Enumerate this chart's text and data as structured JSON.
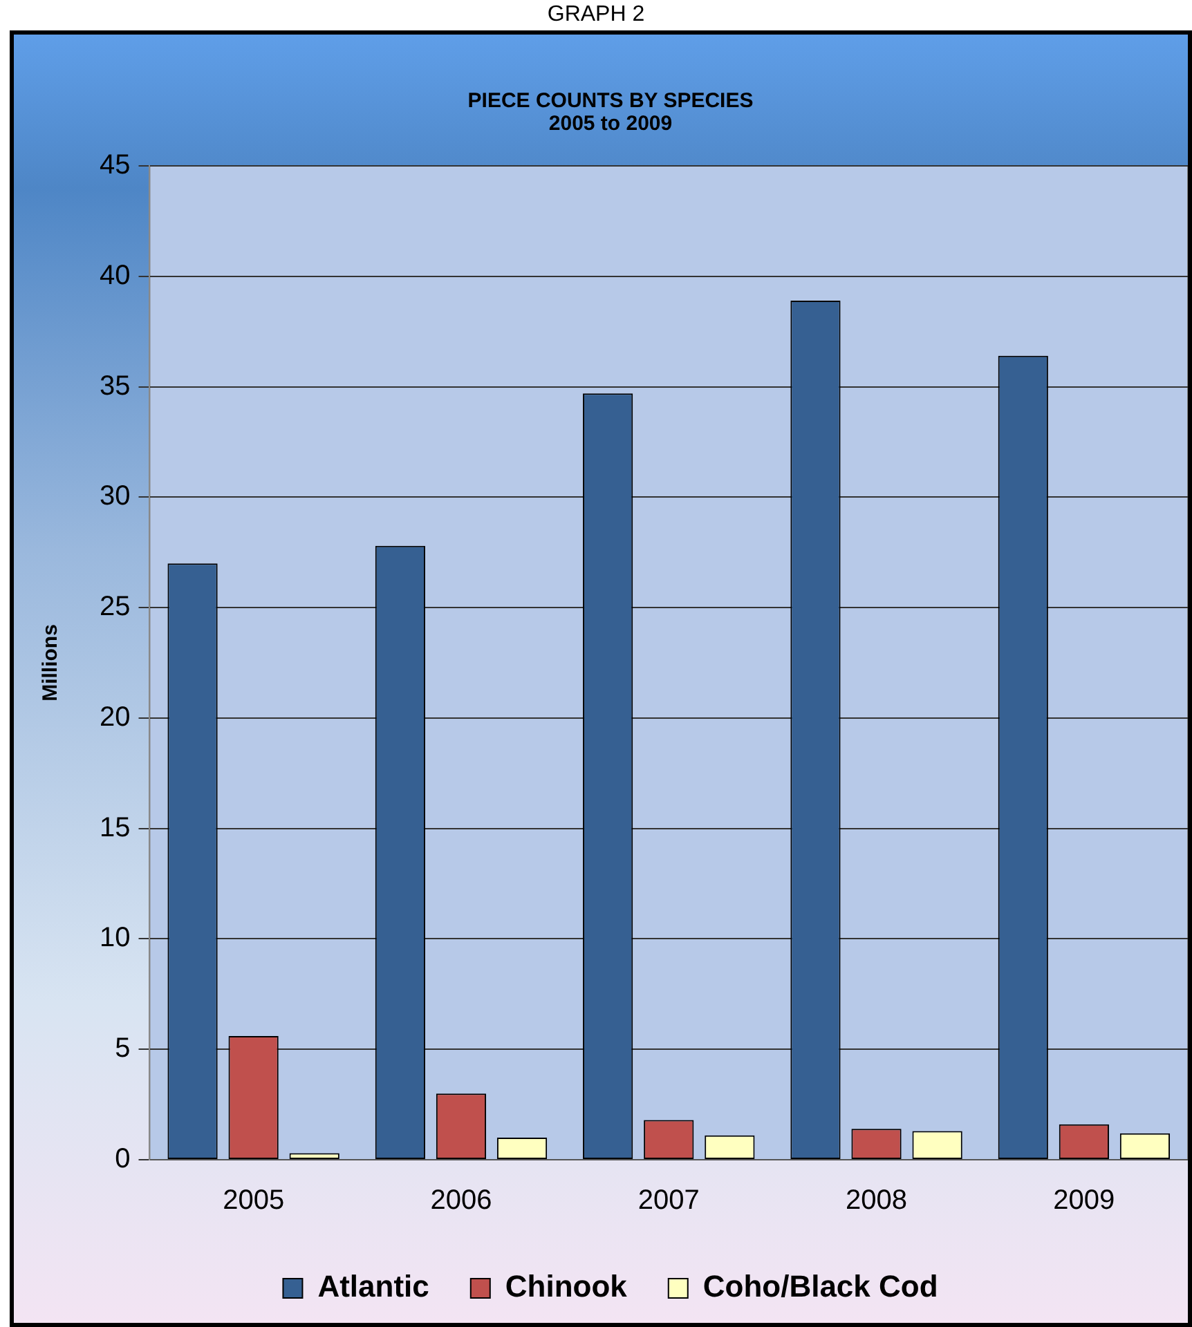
{
  "chart_data": {
    "type": "bar",
    "title": "PIECE COUNTS BY SPECIES",
    "subtitle": "2005 to 2009",
    "ylabel": "Millions",
    "annotations": [
      "GRAPH 2"
    ],
    "categories": [
      "2005",
      "2006",
      "2007",
      "2008",
      "2009"
    ],
    "series": [
      {
        "name": "Atlantic",
        "color": "#366092",
        "values": [
          27.0,
          27.8,
          34.7,
          38.9,
          36.4
        ]
      },
      {
        "name": "Chinook",
        "color": "#c0504d",
        "values": [
          5.6,
          3.0,
          1.8,
          1.4,
          1.6
        ]
      },
      {
        "name": "Coho/Black Cod",
        "color": "#ffffc0",
        "values": [
          0.3,
          1.0,
          1.1,
          1.3,
          1.2
        ]
      }
    ],
    "ylim": [
      0,
      45
    ],
    "yticks": [
      0,
      5,
      10,
      15,
      20,
      25,
      30,
      35,
      40,
      45
    ],
    "grid": "y",
    "legend": "bottom"
  }
}
